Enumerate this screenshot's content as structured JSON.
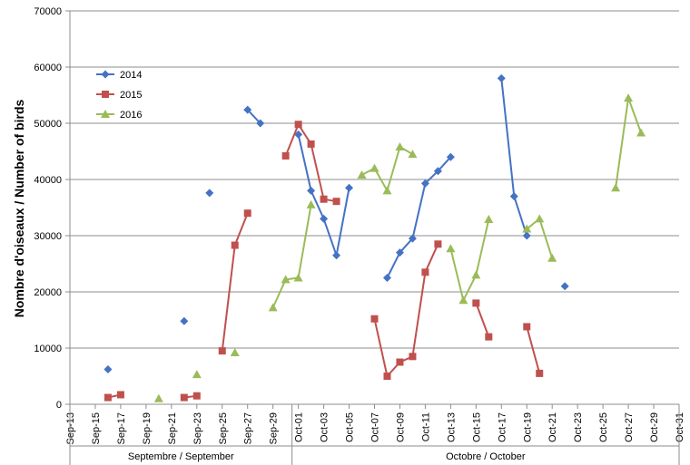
{
  "chart_data": {
    "type": "line",
    "title": "",
    "xlabel": "",
    "ylabel": "Nombre d'oiseaux / Number of birds",
    "ylim": [
      0,
      70000
    ],
    "y_ticks": [
      "0",
      "10000",
      "20000",
      "30000",
      "40000",
      "50000",
      "60000",
      "70000"
    ],
    "grid": true,
    "legend_position": "top-left",
    "x_categories": [
      "Sep-13",
      "Sep-14",
      "Sep-15",
      "Sep-16",
      "Sep-17",
      "Sep-18",
      "Sep-19",
      "Sep-20",
      "Sep-21",
      "Sep-22",
      "Sep-23",
      "Sep-24",
      "Sep-25",
      "Sep-26",
      "Sep-27",
      "Sep-28",
      "Sep-29",
      "Sep-30",
      "Oct-01",
      "Oct-02",
      "Oct-03",
      "Oct-04",
      "Oct-05",
      "Oct-06",
      "Oct-07",
      "Oct-08",
      "Oct-09",
      "Oct-10",
      "Oct-11",
      "Oct-12",
      "Oct-13",
      "Oct-14",
      "Oct-15",
      "Oct-16",
      "Oct-17",
      "Oct-18",
      "Oct-19",
      "Oct-20",
      "Oct-21",
      "Oct-22",
      "Oct-23",
      "Oct-24",
      "Oct-25",
      "Oct-26",
      "Oct-27",
      "Oct-28",
      "Oct-29",
      "Oct-30",
      "Oct-31"
    ],
    "x_tick_labels": [
      "Sep-13",
      "Sep-15",
      "Sep-17",
      "Sep-19",
      "Sep-21",
      "Sep-23",
      "Sep-25",
      "Sep-27",
      "Sep-29",
      "Oct-01",
      "Oct-03",
      "Oct-05",
      "Oct-07",
      "Oct-09",
      "Oct-11",
      "Oct-13",
      "Oct-15",
      "Oct-17",
      "Oct-19",
      "Oct-21",
      "Oct-23",
      "Oct-25",
      "Oct-27",
      "Oct-29",
      "Oct-31"
    ],
    "month_groups": [
      {
        "label": "Septembre / September",
        "from": "Sep-13",
        "to": "Sep-30"
      },
      {
        "label": "Octobre / October",
        "from": "Oct-01",
        "to": "Oct-31"
      }
    ],
    "series": [
      {
        "name": "2014",
        "color": "#4472C4",
        "marker": "diamond",
        "values": [
          null,
          null,
          null,
          6200,
          null,
          null,
          null,
          null,
          null,
          14800,
          null,
          37600,
          null,
          null,
          52400,
          50000,
          null,
          null,
          48000,
          38000,
          33000,
          26500,
          38500,
          null,
          null,
          22500,
          27000,
          29500,
          39300,
          41500,
          44000,
          null,
          null,
          null,
          58000,
          37000,
          30000,
          null,
          null,
          21000,
          null,
          null,
          null,
          null,
          null,
          null,
          null,
          null,
          null
        ]
      },
      {
        "name": "2015",
        "color": "#C0504D",
        "marker": "square",
        "values": [
          null,
          null,
          null,
          1200,
          1700,
          null,
          null,
          null,
          null,
          1200,
          1500,
          null,
          9500,
          28300,
          34000,
          null,
          null,
          44200,
          49800,
          46300,
          36500,
          36100,
          null,
          null,
          15200,
          5000,
          7500,
          8500,
          23500,
          28500,
          null,
          null,
          18000,
          12000,
          null,
          null,
          13800,
          5500,
          null,
          null,
          null,
          null,
          null,
          null,
          null,
          null,
          null,
          null,
          null
        ]
      },
      {
        "name": "2016",
        "color": "#9BBB59",
        "marker": "triangle",
        "values": [
          null,
          null,
          null,
          null,
          null,
          null,
          null,
          1000,
          null,
          null,
          5300,
          null,
          null,
          9200,
          null,
          null,
          17200,
          22200,
          22500,
          35500,
          null,
          null,
          null,
          40800,
          42000,
          38000,
          45800,
          44500,
          null,
          null,
          27700,
          18500,
          23000,
          32900,
          null,
          null,
          31200,
          33000,
          26000,
          null,
          null,
          null,
          null,
          38500,
          54500,
          48300,
          null,
          null,
          null
        ]
      }
    ]
  }
}
